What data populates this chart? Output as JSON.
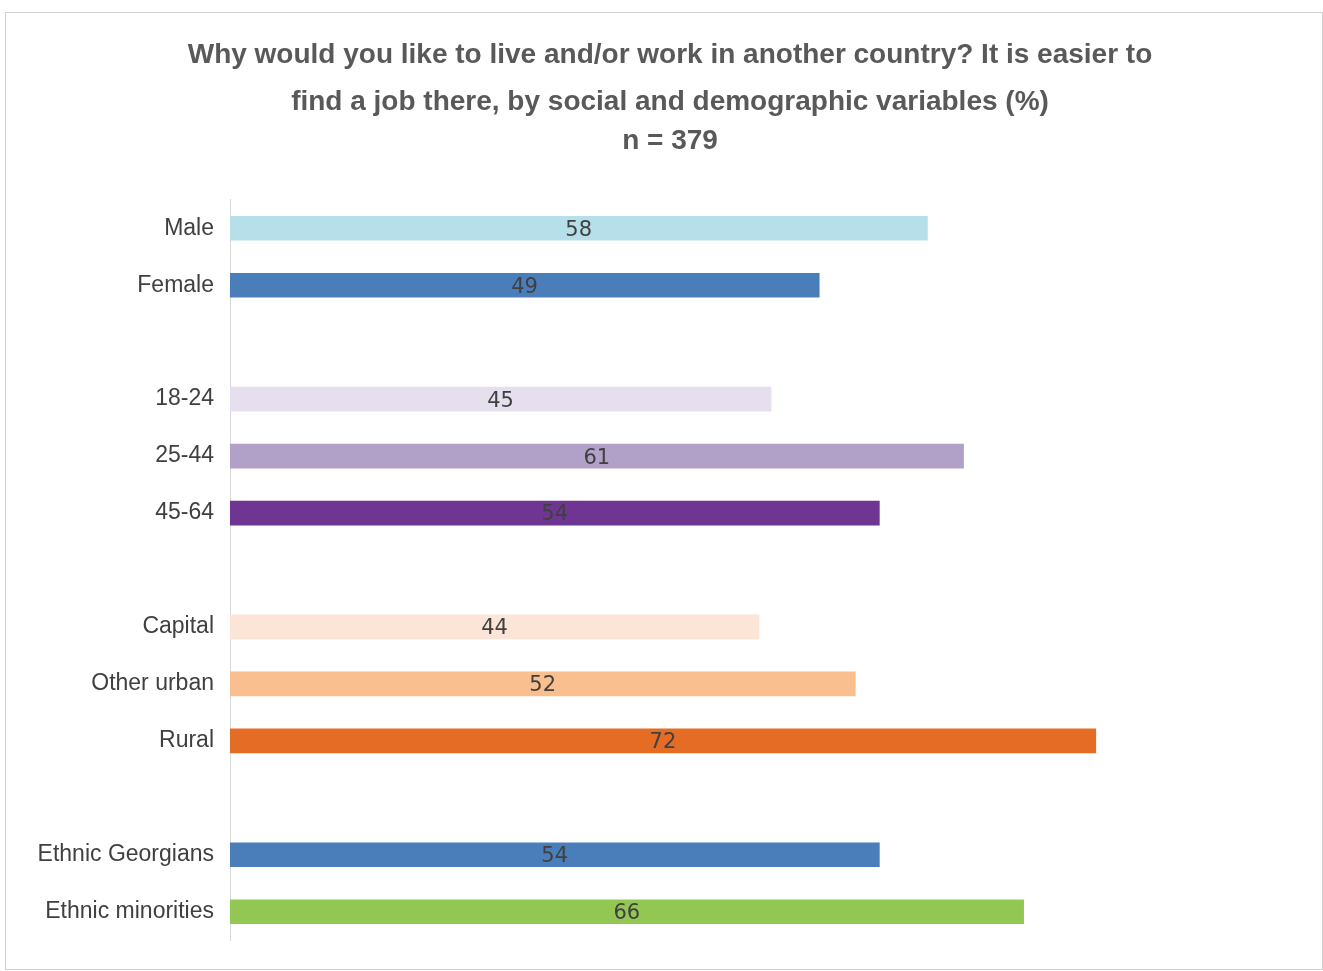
{
  "chart_data": {
    "type": "bar",
    "orientation": "horizontal",
    "title": "Why would you like to live and/or work in another country? It is easier to find a job there, by social and demographic variables (%)",
    "subtitle": "n = 379",
    "categories": [
      "Male",
      "Female",
      null,
      "18-24",
      "25-44",
      "45-64",
      null,
      "Capital",
      "Other urban",
      "Rural",
      null,
      "Ethnic Georgians",
      "Ethnic minorities"
    ],
    "values": [
      58,
      49,
      null,
      45,
      61,
      54,
      null,
      44,
      52,
      72,
      null,
      54,
      66
    ],
    "colors": [
      "#b7dfea",
      "#4a7ebb",
      "#ffffff",
      "#e6dfee",
      "#b1a0c7",
      "#6f3593",
      "#ffffff",
      "#fce4d6",
      "#f9bf8f",
      "#e46c24",
      "#ffffff",
      "#4a7ebb",
      "#92c754"
    ],
    "tick_labels": "y",
    "data_labels": true
  }
}
